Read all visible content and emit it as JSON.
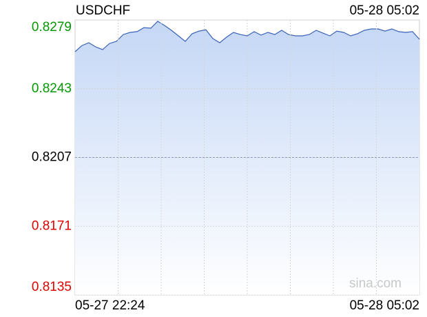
{
  "chart_data": {
    "type": "area",
    "title": "USDCHF",
    "timestamp": "05-28 05:02",
    "x_labels": [
      "05-27 22:24",
      "05-28 05:02"
    ],
    "values": [
      0.82624,
      0.82656,
      0.82671,
      0.82649,
      0.82635,
      0.82667,
      0.82678,
      0.82714,
      0.82725,
      0.82729,
      0.8275,
      0.82747,
      0.82783,
      0.82761,
      0.82736,
      0.82707,
      0.82678,
      0.82718,
      0.82732,
      0.82739,
      0.82693,
      0.82671,
      0.827,
      0.82725,
      0.82714,
      0.82707,
      0.82729,
      0.82711,
      0.82725,
      0.82714,
      0.82736,
      0.82714,
      0.82707,
      0.82707,
      0.82714,
      0.82736,
      0.82721,
      0.82707,
      0.82732,
      0.82725,
      0.82707,
      0.82718,
      0.82736,
      0.82743,
      0.82743,
      0.82732,
      0.82743,
      0.82729,
      0.82725,
      0.82729,
      0.82689
    ],
    "color": "#3a62b8",
    "ylim": [
      0.8135,
      0.8279
    ],
    "yticks": [
      0.8135,
      0.8171,
      0.8207,
      0.8243,
      0.8279
    ],
    "ytick_colors": [
      "#e00000",
      "#e00000",
      "#000000",
      "#009900",
      "#009900"
    ],
    "reference": 0.8207,
    "grid": true,
    "watermark": "sina.com"
  }
}
